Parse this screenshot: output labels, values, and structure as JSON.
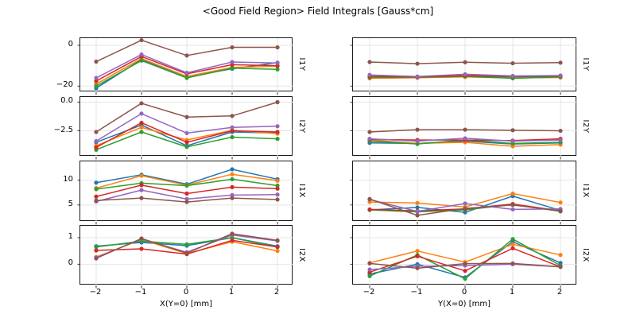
{
  "title": "<Good Field Region> Field Integrals [Gauss*cm]",
  "chart_data": {
    "type": "line",
    "grid": true,
    "legend": "none",
    "x": [
      -2,
      -1,
      0,
      1,
      2
    ],
    "x_tick_labels": [
      "−2",
      "−1",
      "0",
      "1",
      "2"
    ],
    "columns": [
      {
        "id": "left",
        "xlabel": "X(Y=0) [mm]"
      },
      {
        "id": "right",
        "xlabel": "Y(X=0) [mm]"
      }
    ],
    "rows": [
      {
        "label": "I1Y",
        "ylim": [
          -23,
          3.5
        ],
        "yticks": [
          {
            "value": 0,
            "label": "0"
          },
          {
            "value": -20,
            "label": "−20"
          }
        ],
        "panels": {
          "left": {
            "series": [
              {
                "color": "blue",
                "hex": "#1f77b4",
                "values": [
                  -21.0,
                  -7.0,
                  -15.5,
                  -11.5,
                  -8.5
                ]
              },
              {
                "color": "orange",
                "hex": "#ff7f0e",
                "values": [
                  -19.0,
                  -6.5,
                  -15.3,
                  -10.8,
                  -10.3
                ]
              },
              {
                "color": "green",
                "hex": "#2ca02c",
                "values": [
                  -20.0,
                  -7.5,
                  -16.0,
                  -11.2,
                  -11.8
                ]
              },
              {
                "color": "red",
                "hex": "#d62728",
                "values": [
                  -17.5,
                  -5.5,
                  -14.0,
                  -9.5,
                  -10.0
                ]
              },
              {
                "color": "purple",
                "hex": "#9467bd",
                "values": [
                  -16.0,
                  -4.5,
                  -13.5,
                  -8.2,
                  -8.7
                ]
              },
              {
                "color": "brown",
                "hex": "#8c564b",
                "values": [
                  -8.0,
                  2.5,
                  -5.0,
                  -1.0,
                  -1.0
                ]
              }
            ]
          },
          "right": {
            "series": [
              {
                "color": "blue",
                "hex": "#1f77b4",
                "values": [
                  -15.5,
                  -15.6,
                  -15.0,
                  -15.8,
                  -15.2
                ]
              },
              {
                "color": "orange",
                "hex": "#ff7f0e",
                "values": [
                  -16.2,
                  -15.9,
                  -15.5,
                  -16.0,
                  -15.8
                ]
              },
              {
                "color": "green",
                "hex": "#2ca02c",
                "values": [
                  -15.8,
                  -15.7,
                  -15.2,
                  -16.2,
                  -15.5
                ]
              },
              {
                "color": "red",
                "hex": "#d62728",
                "values": [
                  -15.2,
                  -15.5,
                  -14.8,
                  -15.2,
                  -15.0
                ]
              },
              {
                "color": "purple",
                "hex": "#9467bd",
                "values": [
                  -14.5,
                  -15.3,
                  -14.2,
                  -15.0,
                  -14.8
                ]
              },
              {
                "color": "brown",
                "hex": "#8c564b",
                "values": [
                  -8.2,
                  -9.0,
                  -8.3,
                  -8.8,
                  -8.5
                ]
              }
            ]
          }
        }
      },
      {
        "label": "I2Y",
        "ylim": [
          -4.75,
          0.45
        ],
        "yticks": [
          {
            "value": 0,
            "label": "0.0"
          },
          {
            "value": -2.5,
            "label": "−2.5"
          }
        ],
        "panels": {
          "left": {
            "series": [
              {
                "color": "blue",
                "hex": "#1f77b4",
                "values": [
                  -3.5,
                  -2.0,
                  -3.8,
                  -2.6,
                  -2.7
                ]
              },
              {
                "color": "orange",
                "hex": "#ff7f0e",
                "values": [
                  -3.8,
                  -2.2,
                  -3.3,
                  -2.45,
                  -2.75
                ]
              },
              {
                "color": "green",
                "hex": "#2ca02c",
                "values": [
                  -4.15,
                  -2.6,
                  -3.9,
                  -3.05,
                  -3.2
                ]
              },
              {
                "color": "red",
                "hex": "#d62728",
                "values": [
                  -3.95,
                  -1.8,
                  -3.5,
                  -2.5,
                  -2.6
                ]
              },
              {
                "color": "purple",
                "hex": "#9467bd",
                "values": [
                  -3.4,
                  -1.0,
                  -2.7,
                  -2.2,
                  -2.1
                ]
              },
              {
                "color": "brown",
                "hex": "#8c564b",
                "values": [
                  -2.6,
                  -0.1,
                  -1.3,
                  -1.2,
                  0.0
                ]
              }
            ]
          },
          "right": {
            "series": [
              {
                "color": "blue",
                "hex": "#1f77b4",
                "values": [
                  -3.55,
                  -3.6,
                  -3.4,
                  -3.65,
                  -3.55
                ]
              },
              {
                "color": "orange",
                "hex": "#ff7f0e",
                "values": [
                  -3.3,
                  -3.6,
                  -3.5,
                  -3.85,
                  -3.7
                ]
              },
              {
                "color": "green",
                "hex": "#2ca02c",
                "values": [
                  -3.4,
                  -3.65,
                  -3.3,
                  -3.6,
                  -3.5
                ]
              },
              {
                "color": "red",
                "hex": "#d62728",
                "values": [
                  -3.25,
                  -3.3,
                  -3.3,
                  -3.35,
                  -3.2
                ]
              },
              {
                "color": "purple",
                "hex": "#9467bd",
                "values": [
                  -3.2,
                  -3.4,
                  -3.15,
                  -3.4,
                  -3.3
                ]
              },
              {
                "color": "brown",
                "hex": "#8c564b",
                "values": [
                  -2.6,
                  -2.4,
                  -2.4,
                  -2.45,
                  -2.5
                ]
              }
            ]
          }
        }
      },
      {
        "label": "I1X",
        "ylim": [
          1.6,
          13.8
        ],
        "yticks": [
          {
            "value": 10,
            "label": "10"
          },
          {
            "value": 5,
            "label": "5"
          }
        ],
        "panels": {
          "left": {
            "series": [
              {
                "color": "blue",
                "hex": "#1f77b4",
                "values": [
                  9.5,
                  11.1,
                  9.2,
                  12.2,
                  10.2
                ]
              },
              {
                "color": "orange",
                "hex": "#ff7f0e",
                "values": [
                  8.4,
                  10.9,
                  9.0,
                  11.2,
                  9.9
                ]
              },
              {
                "color": "green",
                "hex": "#2ca02c",
                "values": [
                  8.2,
                  9.4,
                  8.9,
                  10.2,
                  8.9
                ]
              },
              {
                "color": "red",
                "hex": "#d62728",
                "values": [
                  6.7,
                  9.0,
                  7.3,
                  8.6,
                  8.3
                ]
              },
              {
                "color": "purple",
                "hex": "#9467bd",
                "values": [
                  5.7,
                  8.0,
                  6.2,
                  7.0,
                  7.1
                ]
              },
              {
                "color": "brown",
                "hex": "#8c564b",
                "values": [
                  5.9,
                  6.4,
                  5.6,
                  6.4,
                  6.1
                ]
              }
            ]
          },
          "right": {
            "series": [
              {
                "color": "blue",
                "hex": "#1f77b4",
                "values": [
                  4.0,
                  4.5,
                  3.5,
                  6.8,
                  3.9
                ]
              },
              {
                "color": "orange",
                "hex": "#ff7f0e",
                "values": [
                  5.6,
                  5.4,
                  4.6,
                  7.3,
                  5.5
                ]
              },
              {
                "color": "green",
                "hex": "#2ca02c",
                "values": [
                  4.0,
                  3.6,
                  4.0,
                  5.1,
                  3.7
                ]
              },
              {
                "color": "red",
                "hex": "#d62728",
                "values": [
                  4.1,
                  3.8,
                  4.2,
                  5.2,
                  3.8
                ]
              },
              {
                "color": "purple",
                "hex": "#9467bd",
                "values": [
                  6.1,
                  3.7,
                  5.3,
                  4.1,
                  4.2
                ]
              },
              {
                "color": "brown",
                "hex": "#8c564b",
                "values": [
                  6.2,
                  2.9,
                  4.3,
                  5.0,
                  3.8
                ]
              }
            ]
          }
        }
      },
      {
        "label": "I2X",
        "ylim": [
          -0.8,
          1.45
        ],
        "yticks": [
          {
            "value": 1,
            "label": "1"
          },
          {
            "value": 0,
            "label": "0"
          }
        ],
        "panels": {
          "left": {
            "series": [
              {
                "color": "blue",
                "hex": "#1f77b4",
                "values": [
                  0.68,
                  0.82,
                  0.7,
                  1.0,
                  0.68
                ]
              },
              {
                "color": "orange",
                "hex": "#ff7f0e",
                "values": [
                  0.27,
                  0.93,
                  0.4,
                  0.85,
                  0.5
                ]
              },
              {
                "color": "green",
                "hex": "#2ca02c",
                "values": [
                  0.65,
                  0.87,
                  0.75,
                  1.0,
                  0.65
                ]
              },
              {
                "color": "red",
                "hex": "#d62728",
                "values": [
                  0.52,
                  0.58,
                  0.38,
                  0.9,
                  0.65
                ]
              },
              {
                "color": "purple",
                "hex": "#9467bd",
                "values": [
                  0.25,
                  0.95,
                  0.45,
                  1.1,
                  0.88
                ]
              },
              {
                "color": "brown",
                "hex": "#8c564b",
                "values": [
                  0.22,
                  0.97,
                  0.42,
                  1.15,
                  0.9
                ]
              }
            ]
          },
          "right": {
            "series": [
              {
                "color": "blue",
                "hex": "#1f77b4",
                "values": [
                  -0.37,
                  0.0,
                  -0.5,
                  0.85,
                  0.05
                ]
              },
              {
                "color": "orange",
                "hex": "#ff7f0e",
                "values": [
                  0.05,
                  0.5,
                  0.08,
                  0.75,
                  0.35
                ]
              },
              {
                "color": "green",
                "hex": "#2ca02c",
                "values": [
                  -0.45,
                  0.35,
                  -0.55,
                  0.95,
                  -0.05
                ]
              },
              {
                "color": "red",
                "hex": "#d62728",
                "values": [
                  -0.3,
                  0.3,
                  -0.25,
                  0.6,
                  -0.1
                ]
              },
              {
                "color": "purple",
                "hex": "#9467bd",
                "values": [
                  -0.2,
                  -0.08,
                  -0.05,
                  0.0,
                  -0.1
                ]
              },
              {
                "color": "brown",
                "hex": "#8c564b",
                "values": [
                  0.03,
                  -0.15,
                  0.02,
                  0.03,
                  -0.1
                ]
              }
            ]
          }
        }
      }
    ]
  },
  "style_colors": {
    "spine": "#1a1a1a",
    "grid": "#e5e5e5",
    "tick": "#262626"
  }
}
